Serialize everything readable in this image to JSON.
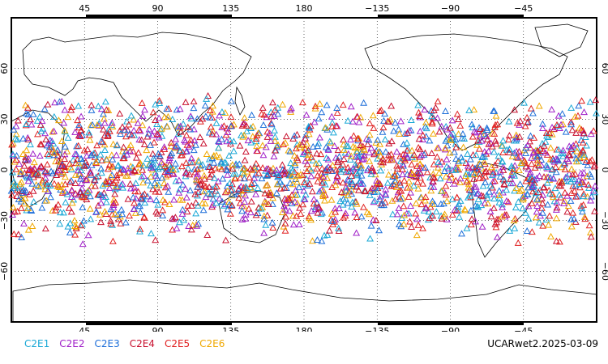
{
  "map": {
    "lon_ticks_top": [
      "45",
      "90",
      "135",
      "180",
      "−135",
      "−90",
      "−45"
    ],
    "lon_ticks_bottom": [
      "45",
      "90",
      "135",
      "180",
      "−135",
      "−90",
      "−45"
    ],
    "lat_ticks": [
      "60",
      "30",
      "0",
      "−30",
      "−60"
    ],
    "lon_range": [
      0,
      360
    ],
    "lat_range": [
      -90,
      90
    ],
    "grid": "dotted",
    "projection": "cylindrical-equidistant"
  },
  "legend": [
    {
      "label": "C2E1",
      "color": "#1aa8d6"
    },
    {
      "label": "C2E2",
      "color": "#a020c8"
    },
    {
      "label": "C2E3",
      "color": "#1e6fd9"
    },
    {
      "label": "C2E4",
      "color": "#c8102e"
    },
    {
      "label": "C2E5",
      "color": "#e02020"
    },
    {
      "label": "C2E6",
      "color": "#f0a800"
    }
  ],
  "caption": "UCARwet2.2025-03-09",
  "marker_symbol": "triangle-open",
  "observation_lat_band": [
    -45,
    45
  ]
}
